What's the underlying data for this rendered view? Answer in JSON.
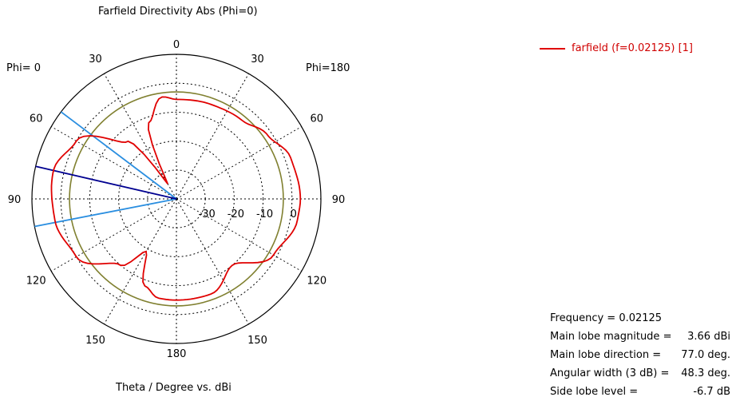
{
  "chart_data": {
    "type": "polar",
    "title": "Farfield Directivity Abs (Phi=0)",
    "xlabel": "Theta / Degree vs. dBi",
    "left_label": "Phi=  0",
    "right_label": "Phi=180",
    "angle_ticks_top": [
      "0"
    ],
    "angle_ticks_left": [
      "30",
      "60",
      "90",
      "120",
      "150"
    ],
    "angle_ticks_right": [
      "30",
      "60",
      "90",
      "120",
      "150"
    ],
    "angle_ticks_bottom": [
      "180"
    ],
    "radial_ticks": [
      "-30",
      "-20",
      "-10",
      "0"
    ],
    "rlim": [
      -40,
      10
    ],
    "legend": {
      "position": "top-right",
      "label": "farfield (f=0.02125) [1]"
    },
    "reference_circle_dbi": -3.0,
    "main_lobe_direction_deg": 77.0,
    "beamwidth_edges_deg": [
      53.0,
      101.0
    ],
    "series": [
      {
        "name": "farfield (f=0.02125) [1]",
        "color": "#e00000",
        "pattern": [
          {
            "theta": -180,
            "r": -5.0
          },
          {
            "theta": -160,
            "r": -5.0
          },
          {
            "theta": -140,
            "r": -10.0
          },
          {
            "theta": -120,
            "r": -1.2
          },
          {
            "theta": -100,
            "r": 2.5
          },
          {
            "theta": -90,
            "r": 2.9
          },
          {
            "theta": -70,
            "r": 2.0
          },
          {
            "theta": -55,
            "r": -1.5
          },
          {
            "theta": -40,
            "r": -4.6
          },
          {
            "theta": -20,
            "r": -5.2
          },
          {
            "theta": 0,
            "r": -5.6
          },
          {
            "theta": 8,
            "r": -4.4
          },
          {
            "theta": 20,
            "r": -12.0
          },
          {
            "theta": 30,
            "r": -34.0
          },
          {
            "theta": 40,
            "r": -14.0
          },
          {
            "theta": 60,
            "r": 0.0
          },
          {
            "theta": 77,
            "r": 3.66
          },
          {
            "theta": 100,
            "r": 2.7
          },
          {
            "theta": 120,
            "r": 0.0
          },
          {
            "theta": 140,
            "r": -10.0
          },
          {
            "theta": 150,
            "r": -19.0
          },
          {
            "theta": 160,
            "r": -8.0
          },
          {
            "theta": 170,
            "r": -5.1
          },
          {
            "theta": 180,
            "r": -5.0
          }
        ]
      }
    ]
  },
  "info": {
    "frequency": "Frequency = 0.02125",
    "magnitude_label": "Main lobe magnitude =",
    "magnitude_value": "3.66 dBi",
    "direction_label": "Main lobe direction =",
    "direction_value": "77.0 deg.",
    "width_label": "Angular width (3 dB) =",
    "width_value": "48.3 deg.",
    "sidelobe_label": "Side lobe level =",
    "sidelobe_value": "-6.7 dB"
  }
}
